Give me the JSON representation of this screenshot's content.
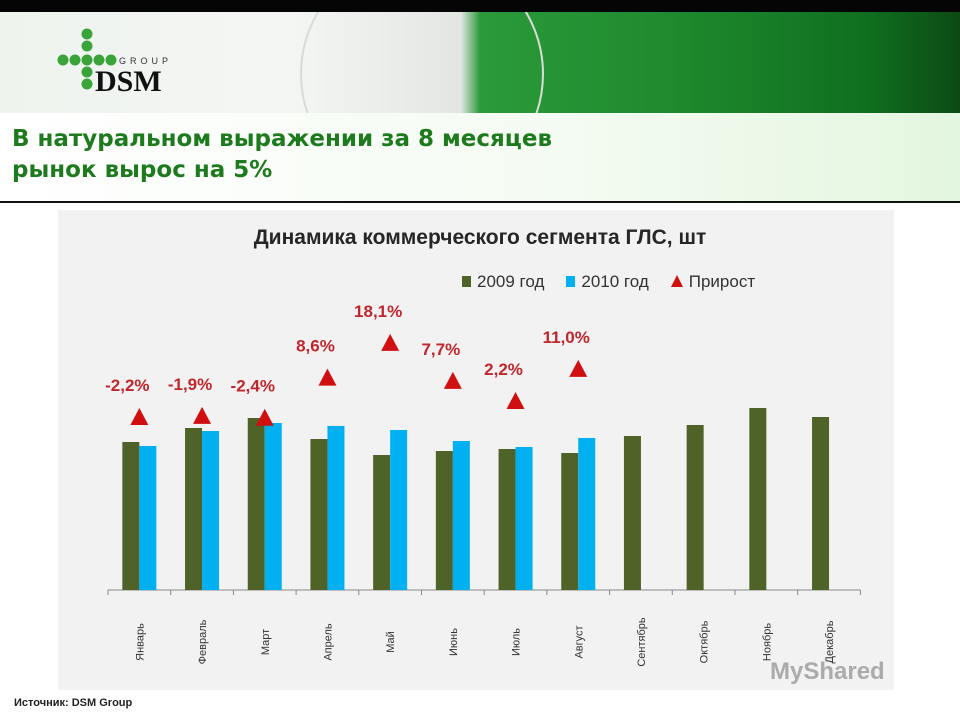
{
  "header": {
    "logo_text": "DSM",
    "logo_subtext": "GROUP"
  },
  "slide_title_lines": [
    "В натуральном выражении за 8 месяцев",
    "рынок вырос на 5%"
  ],
  "source": "Источник: DSM Group",
  "watermark": "MyShared",
  "colors": {
    "series_2009": "#4f6228",
    "series_2010": "#00b0f0",
    "growth": "#d01010",
    "title": "#1d7a1d"
  },
  "chart_data": {
    "type": "bar",
    "title": "Динамика коммерческого сегмента ГЛС, шт",
    "legend_position": "top-right",
    "grid": false,
    "y_axis_shown": false,
    "categories": [
      "Январь",
      "Февраль",
      "Март",
      "Апрель",
      "Май",
      "Июнь",
      "Июль",
      "Август",
      "Сентябрь",
      "Октябрь",
      "Ноябрь",
      "Декабрь"
    ],
    "series": [
      {
        "name": "2009 год",
        "values": [
          148,
          162,
          172,
          151,
          135,
          139,
          141,
          137,
          154,
          165,
          182,
          173
        ]
      },
      {
        "name": "2010 год",
        "values": [
          144,
          159,
          167,
          164,
          160,
          149,
          143,
          152,
          null,
          null,
          null,
          null
        ]
      }
    ],
    "growth": {
      "name": "Прирост",
      "values": [
        -2.2,
        -1.9,
        -2.4,
        8.6,
        18.1,
        7.7,
        2.2,
        11.0
      ],
      "labels": [
        "-2,2%",
        "-1,9%",
        "-2,4%",
        "8,6%",
        "18,1%",
        "7,7%",
        "2,2%",
        "11,0%"
      ]
    }
  }
}
